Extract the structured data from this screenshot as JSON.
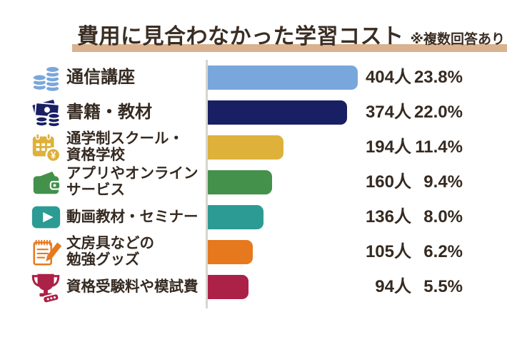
{
  "title": {
    "text": "費用に見合わなかった学習コスト",
    "note": "※複数回答あり"
  },
  "colors": {
    "title_text": "#3a2d23",
    "title_underline": "#d9b28f",
    "axis_line": "#d8d5ce",
    "value_text": "#352a21",
    "background": "#ffffff"
  },
  "chart_data": {
    "type": "bar",
    "orientation": "horizontal",
    "title": "費用に見合わなかった学習コスト",
    "subtitle": "※複数回答あり",
    "unit_count": "人",
    "unit_percent": "%",
    "xlim_percent": [
      0,
      25
    ],
    "value_labels_position": "right",
    "grid": false,
    "legend": "none",
    "categories": [
      "通信講座",
      "書籍・教材",
      "通学制スクール・資格学校",
      "アプリやオンラインサービス",
      "動画教材・セミナー",
      "文房具などの勉強グッズ",
      "資格受験料や模試費"
    ],
    "rows": [
      {
        "label_lines": [
          "通信講座"
        ],
        "icon": "coins-icon",
        "color": "#7aa7db",
        "count": 404,
        "count_label": "404人",
        "percent": 23.8,
        "percent_label": "23.8%"
      },
      {
        "label_lines": [
          "書籍・教材"
        ],
        "icon": "banknotes-coins-icon",
        "color": "#191f63",
        "count": 374,
        "count_label": "374人",
        "percent": 22.0,
        "percent_label": "22.0%"
      },
      {
        "label_lines": [
          "通学制スクール・",
          "資格学校"
        ],
        "icon": "calendar-yen-icon",
        "color": "#ddb13a",
        "count": 194,
        "count_label": "194人",
        "percent": 11.4,
        "percent_label": "11.4%"
      },
      {
        "label_lines": [
          "アプリやオンライン",
          "サービス"
        ],
        "icon": "wallet-icon",
        "color": "#43914b",
        "count": 160,
        "count_label": "160人",
        "percent": 9.4,
        "percent_label": "9.4%"
      },
      {
        "label_lines": [
          "動画教材・セミナー"
        ],
        "icon": "play-icon",
        "color": "#2b9b94",
        "count": 136,
        "count_label": "136人",
        "percent": 8.0,
        "percent_label": "8.0%"
      },
      {
        "label_lines": [
          "文房具などの",
          "勉強グッズ"
        ],
        "icon": "notepad-pencil-icon",
        "color": "#e6791e",
        "count": 105,
        "count_label": "105人",
        "percent": 6.2,
        "percent_label": "6.2%"
      },
      {
        "label_lines": [
          "資格受験料や模試費"
        ],
        "icon": "trophy-icon",
        "color": "#ac2147",
        "count": 94,
        "count_label": "94人",
        "percent": 5.5,
        "percent_label": "5.5%"
      }
    ]
  }
}
